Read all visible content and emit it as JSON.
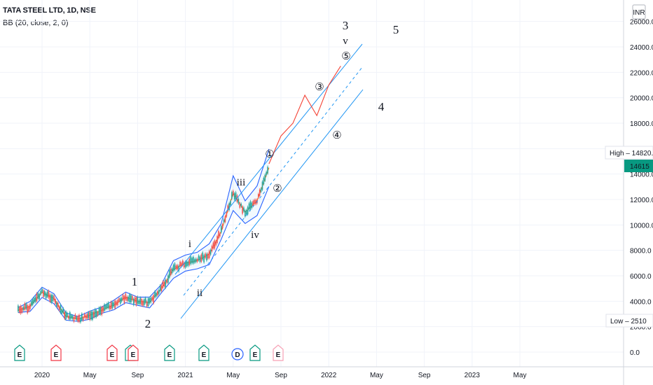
{
  "header": {
    "symbol_line": "TATA STEEL LTD, 1D, NSE",
    "indicator_line": "BB (20, close, 2, 0)"
  },
  "currency": "INR",
  "colors": {
    "candle_up": "#26a69a",
    "candle_down": "#ef5350",
    "bb_band": "#2962ff",
    "bb_basis": "#ff6d00",
    "channel": "#2196f3",
    "projection": "#f44336",
    "event_earnings": "#089981",
    "event_dividend": "#2962ff",
    "event_split": "#f23645",
    "price_tag": "#089981"
  },
  "chart_data": {
    "type": "line",
    "title": "TATA STEEL LTD, 1D, NSE",
    "xlabel": "",
    "ylabel": "",
    "ylim": [
      -200,
      26500
    ],
    "y_ticks": [
      "0.0",
      "2000.0",
      "4000.0",
      "6000.0",
      "8000.0",
      "10000.0",
      "12000.0",
      "14000.0",
      "16000.0",
      "18000.0",
      "20000.0",
      "22000.0",
      "24000.0",
      "26000.0"
    ],
    "x_ticks": [
      "2020",
      "May",
      "Sep",
      "2021",
      "May",
      "Sep",
      "2022",
      "May",
      "Sep",
      "2023",
      "May"
    ],
    "x_tick_dates": [
      "2020-01",
      "2020-05",
      "2020-09",
      "2021-01",
      "2021-05",
      "2021-09",
      "2022-01",
      "2022-05",
      "2022-09",
      "2023-01",
      "2023-05"
    ],
    "grid": true,
    "legend": "none",
    "series": [
      {
        "name": "BB (20, close, 2, 0)",
        "x": [
          "2019-11",
          "2019-12",
          "2020-01",
          "2020-02",
          "2020-03",
          "2020-04",
          "2020-05",
          "2020-06",
          "2020-07",
          "2020-08",
          "2020-09",
          "2020-10",
          "2020-11",
          "2020-12",
          "2021-01",
          "2021-02",
          "2021-03",
          "2021-04",
          "2021-05",
          "2021-06",
          "2021-07",
          "2021-08"
        ],
        "values": [
          3300,
          3600,
          4700,
          4200,
          2800,
          2600,
          2900,
          3300,
          3700,
          4300,
          4000,
          3900,
          5000,
          6500,
          7000,
          7200,
          7700,
          9500,
          12500,
          11000,
          11900,
          14500
        ]
      },
      {
        "name": "Elliott projection",
        "x": [
          "2021-08",
          "2021-09",
          "2021-10",
          "2021-11",
          "2021-12",
          "2022-01",
          "2022-02"
        ],
        "values": [
          14800,
          17000,
          18000,
          20200,
          18600,
          21000,
          22500
        ]
      }
    ],
    "price_labels": [
      {
        "label": "High",
        "value": "14820.0"
      },
      {
        "label": "",
        "value": "14615"
      },
      {
        "label": "Low",
        "value": "2510"
      }
    ],
    "annotations": [
      "1",
      "2",
      "3",
      "4",
      "5",
      "i",
      "ii",
      "iii",
      "iv",
      "v",
      "①",
      "②",
      "③",
      "④",
      "⑤"
    ],
    "events": [
      "E",
      "E",
      "E",
      "E",
      "E",
      "E",
      "E",
      "D",
      "E",
      "E"
    ]
  }
}
